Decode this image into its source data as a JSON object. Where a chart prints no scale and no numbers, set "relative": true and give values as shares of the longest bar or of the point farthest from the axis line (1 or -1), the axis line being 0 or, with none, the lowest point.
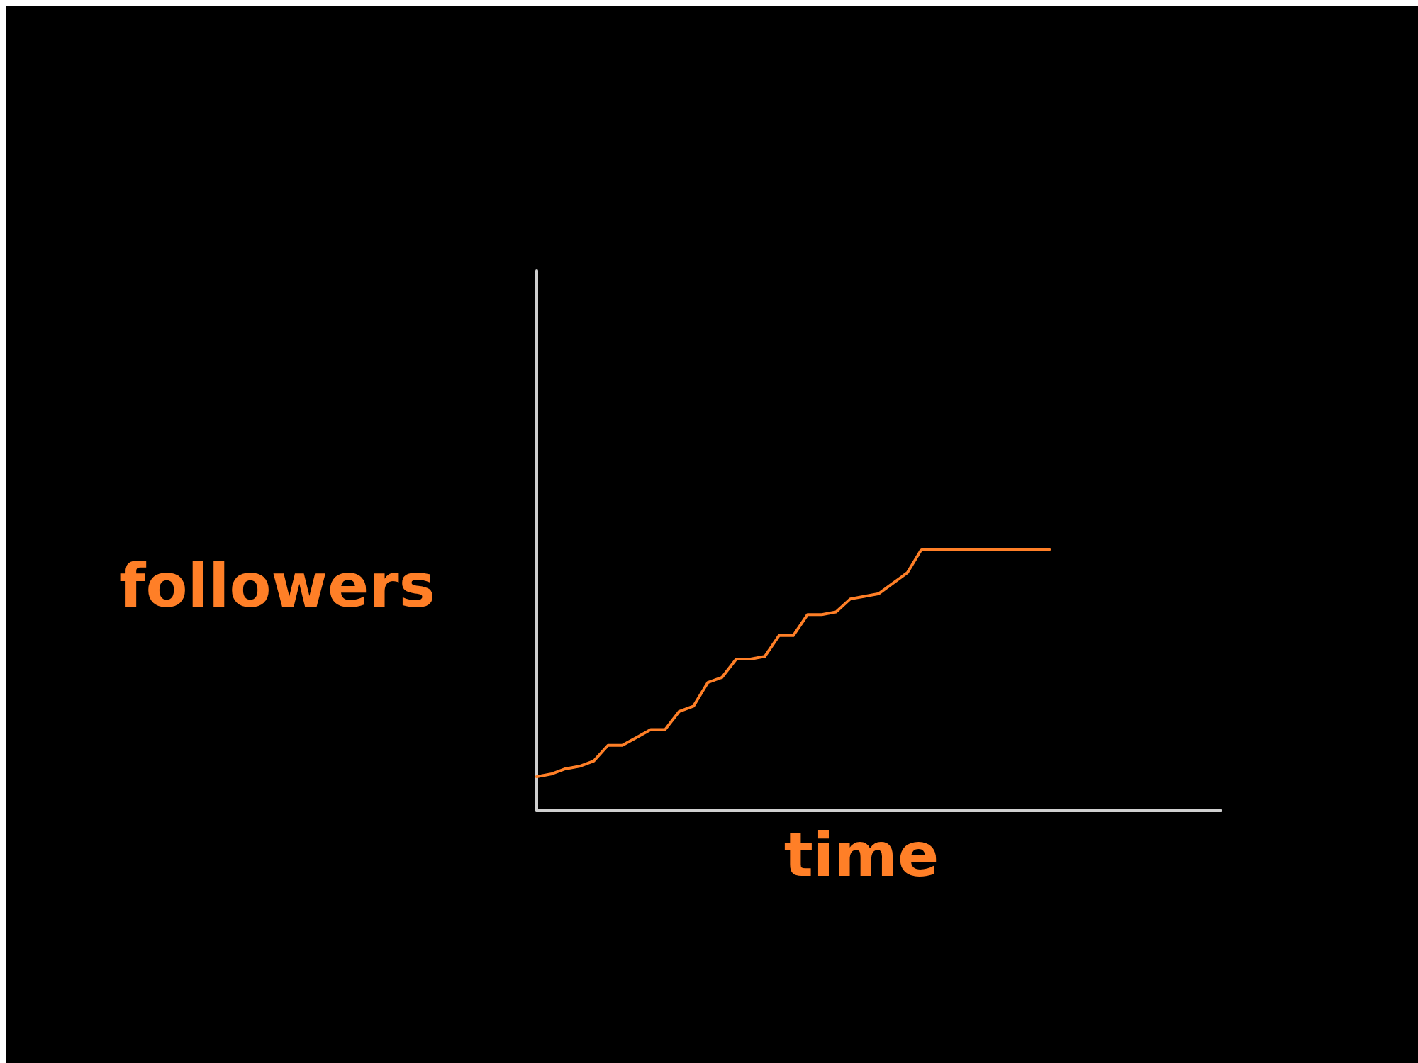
{
  "chart_data": {
    "type": "line",
    "relative": true,
    "xlabel": "time",
    "ylabel": "followers",
    "categories": [
      null,
      null,
      null,
      null,
      null,
      null,
      null,
      null,
      null,
      null,
      null,
      null,
      null,
      null,
      null,
      null,
      null,
      null,
      null,
      null,
      null,
      null,
      null,
      null,
      null,
      null,
      null,
      null,
      null,
      null,
      null,
      null,
      null,
      null,
      null,
      null,
      null,
      null,
      null,
      null,
      null,
      null,
      null,
      null,
      null,
      null,
      null,
      null,
      null
    ],
    "series": [
      {
        "color": "#ff7f27",
        "values": [
          0.13,
          0.14,
          0.16,
          0.17,
          0.19,
          0.25,
          0.25,
          0.28,
          0.31,
          0.31,
          0.38,
          0.4,
          0.49,
          0.51,
          0.58,
          0.58,
          0.59,
          0.67,
          0.67,
          0.75,
          0.75,
          0.76,
          0.81,
          0.82,
          0.83,
          0.87,
          0.91,
          1,
          1,
          1,
          1,
          1,
          1,
          1,
          1,
          1,
          1,
          null,
          null,
          null,
          null,
          null,
          null,
          null,
          null,
          null,
          null,
          null,
          null
        ]
      }
    ]
  }
}
